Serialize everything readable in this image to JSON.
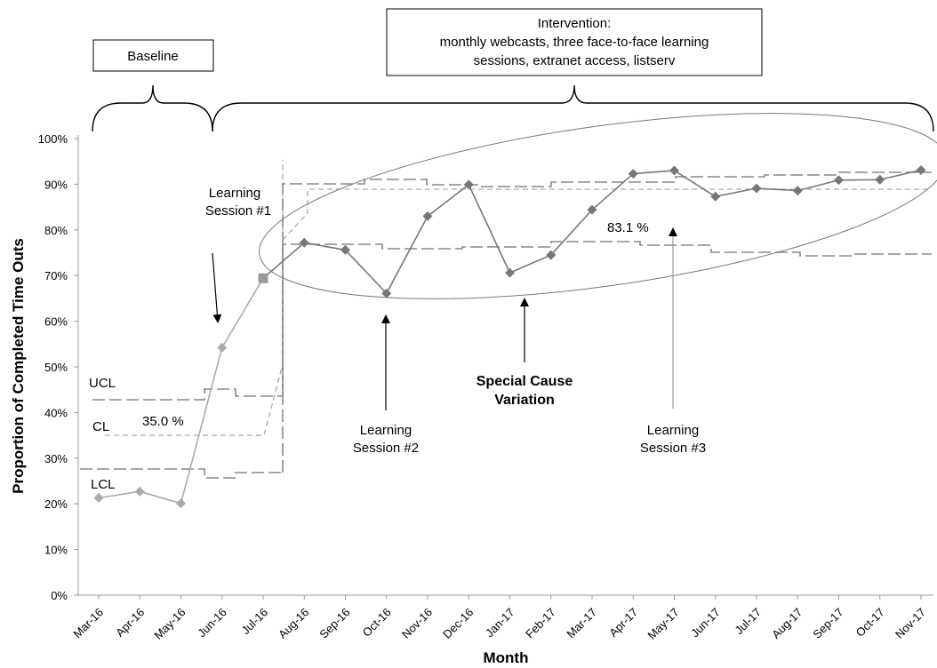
{
  "chart_data": {
    "type": "line",
    "xlabel": "Month",
    "ylabel": "Proportion of Completed Time Outs",
    "ylim": [
      0,
      100
    ],
    "yticks": [
      "0%",
      "10%",
      "20%",
      "30%",
      "40%",
      "50%",
      "60%",
      "70%",
      "80%",
      "90%",
      "100%"
    ],
    "categories": [
      "Mar-16",
      "Apr-16",
      "May-16",
      "Jun-16",
      "Jul-16",
      "Aug-16",
      "Sep-16",
      "Oct-16",
      "Nov-16",
      "Dec-16",
      "Jan-17",
      "Feb-17",
      "Mar-17",
      "Apr-17",
      "May-17",
      "Jun-17",
      "Jul-17",
      "Aug-17",
      "Sep-17",
      "Oct-17",
      "Nov-17"
    ],
    "series": [
      {
        "values": [
          21.3,
          22.7,
          20.1,
          54.2,
          69.4,
          77.2,
          75.6,
          66.1,
          83.0,
          89.9,
          70.6,
          74.5,
          84.4,
          92.3,
          93.0,
          87.3,
          89.1,
          88.6,
          90.9,
          91.0,
          93.1
        ]
      }
    ],
    "control_limits": {
      "baseline": {
        "UCL": 43.0,
        "CL": 35.0,
        "LCL": 27.2
      },
      "intervention": {
        "UCL_approx": 90.5,
        "CL": 83.1,
        "LCL_approx": 75.5
      }
    },
    "grid": false,
    "legend": "none"
  },
  "phases": {
    "baseline_label": "Baseline",
    "intervention_title": "Intervention:",
    "intervention_line1": "monthly webcasts, three face-to-face learning",
    "intervention_line2": "sessions, extranet access, listserv"
  },
  "labels": {
    "ucl": "UCL",
    "cl": "CL",
    "lcl": "LCL",
    "baseline_cl_value": "35.0 %",
    "intervention_cl_value": "83.1 %",
    "ls1_line1": "Learning",
    "ls1_line2": "Session #1",
    "ls2_line1": "Learning",
    "ls2_line2": "Session #2",
    "ls3_line1": "Learning",
    "ls3_line2": "Session #3",
    "scv_line1": "Special Cause",
    "scv_line2": "Variation"
  }
}
